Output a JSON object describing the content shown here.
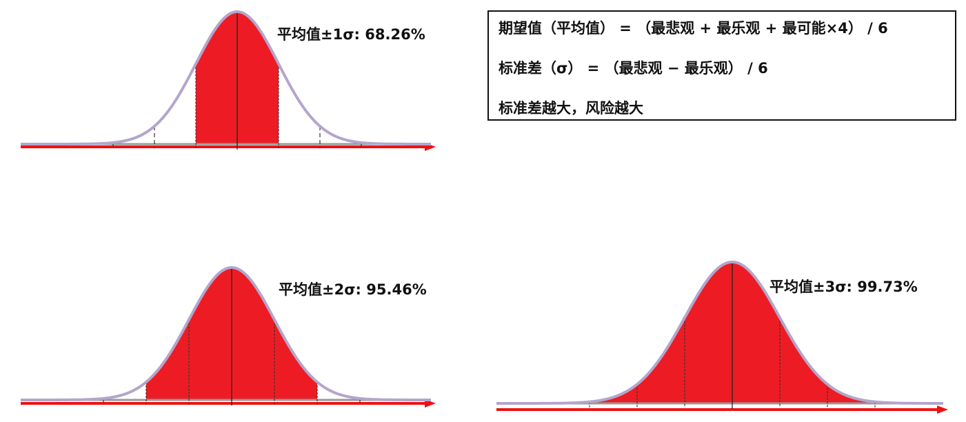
{
  "distributions": [
    {
      "id": "one-sigma",
      "label": "平均值±1σ:  68.26%",
      "shaded_sigma": 1
    },
    {
      "id": "two-sigma",
      "label": "平均值±2σ:  95.46%",
      "shaded_sigma": 2
    },
    {
      "id": "three-sigma",
      "label": "平均值±3σ:  99.73%",
      "shaded_sigma": 3
    }
  ],
  "formulas": {
    "expected_value": "期望值（平均值） = （最悲观 + 最乐观 + 最可能×4） / 6",
    "standard_deviation": "标准差（σ） = （最悲观 − 最乐观） / 6",
    "note": "标准差越大，风险越大"
  },
  "colors": {
    "fill": "#ed1c24",
    "curve": "#b3a5cc",
    "axis": "#ee1111",
    "baseline": "#999999",
    "guide": "#333333"
  }
}
